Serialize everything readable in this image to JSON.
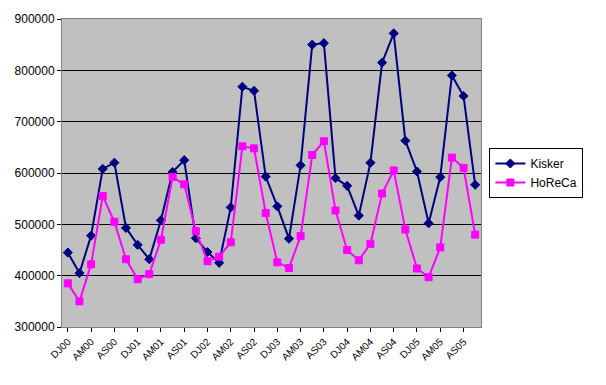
{
  "chart_data": {
    "type": "line",
    "categories": [
      "DJ00",
      null,
      "AM00",
      null,
      "AS00",
      null,
      "DJ01",
      null,
      "AM01",
      null,
      "AS01",
      null,
      "DJ02",
      null,
      "AM02",
      null,
      "AS02",
      null,
      "DJ03",
      null,
      "AM03",
      null,
      "AS03",
      null,
      "DJ04",
      null,
      "AM04",
      null,
      "AS04",
      null,
      "DJ05",
      null,
      "AM05",
      null,
      "AS05",
      null
    ],
    "series": [
      {
        "name": "Kisker",
        "color": "#000080",
        "marker": "diamond",
        "values": [
          445000,
          405000,
          478000,
          608000,
          620000,
          493000,
          460000,
          432000,
          508000,
          602000,
          625000,
          473000,
          446000,
          425000,
          533000,
          768000,
          760000,
          593000,
          535000,
          472000,
          615000,
          850000,
          853000,
          590000,
          575000,
          517000,
          620000,
          815000,
          872000,
          663000,
          603000,
          502000,
          592000,
          790000,
          750000,
          577000
        ]
      },
      {
        "name": "HoReCa",
        "color": "#FF00FF",
        "marker": "square",
        "values": [
          385000,
          350000,
          422000,
          555000,
          505000,
          432000,
          393000,
          403000,
          470000,
          592000,
          578000,
          487000,
          428000,
          437000,
          465000,
          652000,
          648000,
          522000,
          426000,
          415000,
          477000,
          635000,
          662000,
          527000,
          450000,
          430000,
          462000,
          560000,
          605000,
          490000,
          414000,
          397000,
          455000,
          630000,
          610000,
          480000
        ]
      }
    ],
    "ylim": [
      300000,
      900000
    ],
    "yticks": [
      300000,
      400000,
      500000,
      600000,
      700000,
      800000,
      900000
    ],
    "grid": true,
    "legend": "right"
  }
}
